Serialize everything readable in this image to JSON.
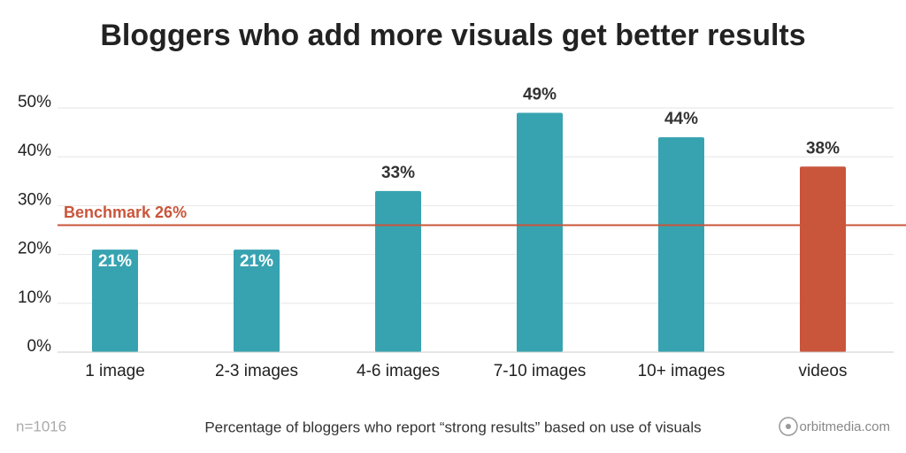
{
  "chart_data": {
    "type": "bar",
    "title": "Bloggers who add more visuals get better results",
    "caption": "Percentage of bloggers who report “strong results” based on use of visuals",
    "note": "n=1016",
    "source": "orbitmedia.com",
    "categories": [
      "1 image",
      "2-3 images",
      "4-6 images",
      "7-10 images",
      "10+ images",
      "videos"
    ],
    "values": [
      21,
      21,
      33,
      49,
      44,
      38
    ],
    "value_labels": [
      "21%",
      "21%",
      "33%",
      "49%",
      "44%",
      "38%"
    ],
    "colors": [
      "#37a3b1",
      "#37a3b1",
      "#37a3b1",
      "#37a3b1",
      "#37a3b1",
      "#c9553b"
    ],
    "ylim": [
      0,
      50
    ],
    "yticks": [
      {
        "value": 0,
        "label": "0%"
      },
      {
        "value": 10,
        "label": "10%"
      },
      {
        "value": 20,
        "label": "20%"
      },
      {
        "value": 30,
        "label": "30%"
      },
      {
        "value": 40,
        "label": "40%"
      },
      {
        "value": 50,
        "label": "50%"
      }
    ],
    "grid": true,
    "benchmark": {
      "value": 26,
      "label": "Benchmark 26%",
      "color": "#c9553b"
    }
  }
}
